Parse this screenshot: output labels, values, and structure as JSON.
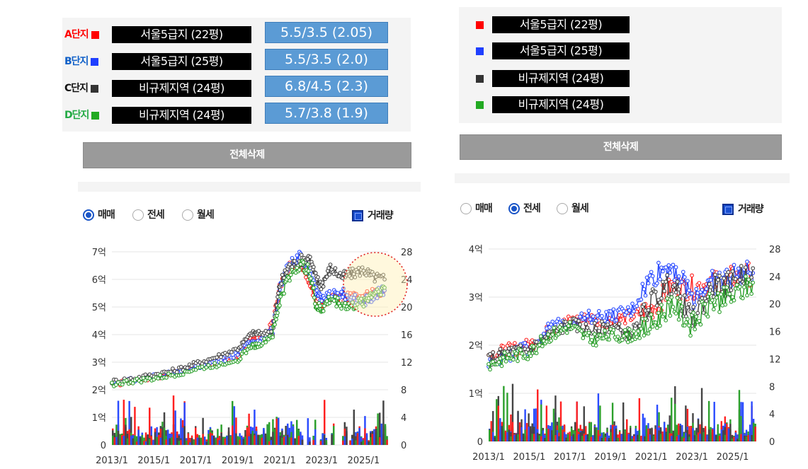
{
  "left": {
    "rows": [
      {
        "tag": "A단지",
        "name": "서울5급지 (22평)",
        "ratio": "5.5/3.5  (2.05)",
        "color": "#ff0000"
      },
      {
        "tag": "B단지",
        "name": "서울5급지 (25평)",
        "ratio": "5.5/3.5  (2.0)",
        "color": "#1f3fff"
      },
      {
        "tag": "C단지",
        "name": "비규제지역 (24평)",
        "ratio": "6.8/4.5  (2.3)",
        "color": "#333333"
      },
      {
        "tag": "D단지",
        "name": "비규제지역 (24평)",
        "ratio": "5.7/3.8  (1.9)",
        "color": "#22aa22"
      }
    ],
    "delete_label": "전체삭제",
    "radios": [
      {
        "label": "매매",
        "selected": true
      },
      {
        "label": "전세",
        "selected": false
      },
      {
        "label": "월세",
        "selected": false
      }
    ],
    "volume_label": "거래량"
  },
  "right": {
    "rows": [
      {
        "name": "서울5급지 (22평)",
        "color": "#ff0000"
      },
      {
        "name": "서울5급지 (25평)",
        "color": "#1f3fff"
      },
      {
        "name": "비규제지역 (24평)",
        "color": "#333333"
      },
      {
        "name": "비규제지역 (24평)",
        "color": "#22aa22"
      }
    ],
    "delete_label": "전체삭제",
    "radios": [
      {
        "label": "매매",
        "selected": false
      },
      {
        "label": "전세",
        "selected": true
      },
      {
        "label": "월세",
        "selected": false
      }
    ],
    "volume_label": "거래량"
  },
  "chart_data": [
    {
      "type": "line",
      "title": "",
      "x_ticks": [
        "2013/1",
        "2015/1",
        "2017/1",
        "2019/1",
        "2021/1",
        "2023/1",
        "2025/1"
      ],
      "xlim": [
        "2013/1",
        "2026/3"
      ],
      "y_left_ticks": [
        "0",
        "1억",
        "2억",
        "3억",
        "4억",
        "5억",
        "6억",
        "7억"
      ],
      "ylim_left": [
        0,
        7
      ],
      "y_right_ticks": [
        "0",
        "4",
        "8",
        "12",
        "16",
        "20",
        "24",
        "28"
      ],
      "ylim_right": [
        0,
        28
      ],
      "series": [
        {
          "name": "A단지",
          "color": "#ff2020",
          "x": [
            "2013/1",
            "2014/1",
            "2015/1",
            "2016/1",
            "2017/1",
            "2018/1",
            "2019/1",
            "2019/9",
            "2020/1",
            "2020/9",
            "2021/1",
            "2021/6",
            "2022/1",
            "2022/6",
            "2022/10",
            "2023/1",
            "2023/6",
            "2024/1",
            "2024/6",
            "2025/1",
            "2025/6",
            "2026/1"
          ],
          "values": [
            2.2,
            2.3,
            2.45,
            2.6,
            2.85,
            3.0,
            3.2,
            3.9,
            3.8,
            4.3,
            5.7,
            6.4,
            6.6,
            6.0,
            5.2,
            5.0,
            5.3,
            5.3,
            5.4,
            5.3,
            5.5,
            5.6
          ]
        },
        {
          "name": "B단지",
          "color": "#2a4bff",
          "x": [
            "2013/1",
            "2014/1",
            "2015/1",
            "2016/1",
            "2017/1",
            "2018/1",
            "2019/1",
            "2019/9",
            "2020/1",
            "2020/9",
            "2021/1",
            "2021/6",
            "2022/1",
            "2022/6",
            "2022/10",
            "2023/1",
            "2023/6",
            "2024/1",
            "2024/6",
            "2025/1",
            "2025/6",
            "2026/1"
          ],
          "values": [
            2.25,
            2.35,
            2.5,
            2.6,
            2.8,
            3.0,
            3.3,
            3.8,
            3.7,
            4.2,
            5.6,
            6.5,
            6.9,
            6.3,
            5.6,
            5.2,
            5.4,
            5.5,
            5.3,
            5.2,
            5.4,
            5.6
          ]
        },
        {
          "name": "C단지",
          "color": "#444444",
          "x": [
            "2013/1",
            "2014/1",
            "2015/1",
            "2016/1",
            "2017/1",
            "2018/1",
            "2019/1",
            "2019/9",
            "2020/1",
            "2020/9",
            "2021/1",
            "2021/6",
            "2022/1",
            "2022/6",
            "2022/10",
            "2023/1",
            "2023/6",
            "2024/1",
            "2024/6",
            "2025/1",
            "2025/6",
            "2026/1"
          ],
          "values": [
            2.3,
            2.4,
            2.55,
            2.7,
            2.95,
            3.2,
            3.5,
            4.05,
            4.05,
            4.1,
            5.8,
            6.45,
            6.7,
            6.8,
            6.0,
            5.8,
            6.4,
            6.1,
            6.2,
            6.35,
            6.1,
            6.0
          ]
        },
        {
          "name": "D단지",
          "color": "#2ca02c",
          "x": [
            "2013/1",
            "2014/1",
            "2015/1",
            "2016/1",
            "2017/1",
            "2018/1",
            "2019/1",
            "2019/9",
            "2020/1",
            "2020/9",
            "2021/1",
            "2021/6",
            "2022/1",
            "2022/6",
            "2022/10",
            "2023/1",
            "2023/6",
            "2024/1",
            "2024/6",
            "2025/1",
            "2025/6",
            "2026/1"
          ],
          "values": [
            2.2,
            2.3,
            2.4,
            2.55,
            2.75,
            2.9,
            3.1,
            3.6,
            3.6,
            4.0,
            5.2,
            6.1,
            6.55,
            6.3,
            5.0,
            4.9,
            5.3,
            5.1,
            5.0,
            5.2,
            5.5,
            5.7
          ]
        }
      ]
    },
    {
      "type": "line",
      "title": "",
      "x_ticks": [
        "2013/1",
        "2015/1",
        "2017/1",
        "2019/1",
        "2021/1",
        "2023/1",
        "2025/1"
      ],
      "xlim": [
        "2013/1",
        "2026/3"
      ],
      "y_left_ticks": [
        "0",
        "1억",
        "2억",
        "3억",
        "4억"
      ],
      "ylim_left": [
        0,
        4
      ],
      "y_right_ticks": [
        "0",
        "4",
        "8",
        "12",
        "16",
        "20",
        "24",
        "28"
      ],
      "ylim_right": [
        0,
        28
      ],
      "series": [
        {
          "name": "A단지",
          "color": "#ff2020",
          "x": [
            "2013/1",
            "2014/1",
            "2015/1",
            "2016/1",
            "2017/1",
            "2018/1",
            "2019/1",
            "2020/1",
            "2021/1",
            "2022/1",
            "2023/1",
            "2024/1",
            "2025/1",
            "2026/1"
          ],
          "values": [
            1.8,
            1.9,
            2.0,
            2.3,
            2.5,
            2.55,
            2.5,
            2.6,
            2.75,
            3.2,
            3.2,
            3.3,
            3.4,
            3.5
          ]
        },
        {
          "name": "B단지",
          "color": "#2a4bff",
          "x": [
            "2013/1",
            "2014/1",
            "2015/1",
            "2016/1",
            "2017/1",
            "2018/1",
            "2019/1",
            "2020/1",
            "2021/1",
            "2022/1",
            "2023/1",
            "2024/1",
            "2025/1",
            "2026/1"
          ],
          "values": [
            1.65,
            1.8,
            1.95,
            2.35,
            2.5,
            2.6,
            2.6,
            2.7,
            3.4,
            3.7,
            3.0,
            3.3,
            3.45,
            3.5
          ]
        },
        {
          "name": "C단지",
          "color": "#444444",
          "x": [
            "2013/1",
            "2014/1",
            "2015/1",
            "2016/1",
            "2017/1",
            "2018/1",
            "2019/1",
            "2020/1",
            "2021/1",
            "2022/1",
            "2023/1",
            "2024/1",
            "2025/1",
            "2026/1"
          ],
          "values": [
            1.7,
            1.85,
            1.9,
            2.2,
            2.45,
            2.3,
            2.4,
            2.2,
            2.9,
            3.3,
            2.5,
            3.2,
            3.3,
            3.6
          ]
        },
        {
          "name": "D단지",
          "color": "#2ca02c",
          "x": [
            "2013/1",
            "2014/1",
            "2015/1",
            "2016/1",
            "2017/1",
            "2018/1",
            "2019/1",
            "2020/1",
            "2021/1",
            "2022/1",
            "2023/1",
            "2024/1",
            "2025/1",
            "2026/1"
          ],
          "values": [
            1.6,
            1.75,
            1.85,
            2.2,
            2.4,
            2.1,
            2.2,
            2.2,
            2.4,
            2.9,
            2.4,
            2.9,
            3.0,
            3.3
          ]
        }
      ]
    }
  ]
}
